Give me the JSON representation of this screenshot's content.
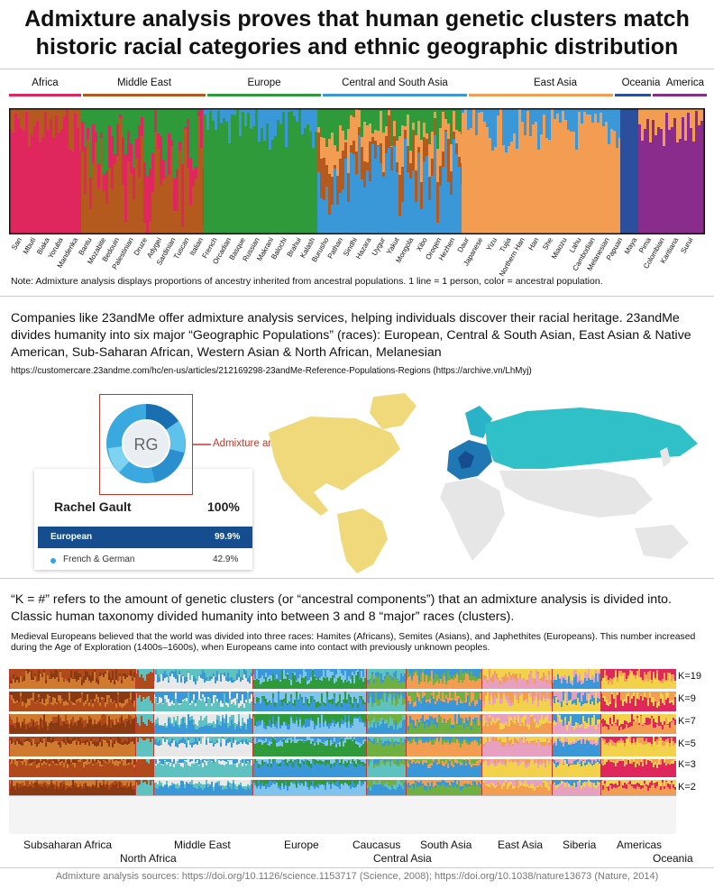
{
  "header": {
    "title_line1": "Admixture analysis proves that human genetic clusters match",
    "title_line2": "historic racial categories and ethnic geographic distribution"
  },
  "admixture_chart": {
    "regions": [
      {
        "label": "Africa",
        "color": "#e0275d"
      },
      {
        "label": "Middle East",
        "color": "#b55a1e"
      },
      {
        "label": "Europe",
        "color": "#2e9a3a"
      },
      {
        "label": "Central and South Asia",
        "color": "#3a98d8"
      },
      {
        "label": "East Asia",
        "color": "#f39d53"
      },
      {
        "label": "Oceania",
        "color": "#2b4f9c"
      },
      {
        "label": "America",
        "color": "#8a2c8c"
      }
    ],
    "populations": [
      "San",
      "Mbuti",
      "Biaka",
      "Yoruba",
      "Mandenka",
      "Bantu",
      "Mozabite",
      "Bedouin",
      "Palestinian",
      "Druze",
      "Adygei",
      "Sardinian",
      "Tuscan",
      "Italian",
      "French",
      "Orcadian",
      "Basque",
      "Russian",
      "Makrani",
      "Balochi",
      "Brahui",
      "Kalash",
      "Burusho",
      "Pathan",
      "Sindhi",
      "Hazara",
      "Uygur",
      "Yakut",
      "Mongola",
      "Xibo",
      "Oroqen",
      "Hezhen",
      "Daur",
      "Japanese",
      "Yizu",
      "Tujia",
      "Northern Han",
      "Han",
      "She",
      "Miaozu",
      "Lahu",
      "Cambodian",
      "Melanesian",
      "Papuan",
      "Maya",
      "Pima",
      "Colombian",
      "Karitiana",
      "Surui"
    ],
    "note": "Note: Admixture analysis displays proportions of ancestry inherited from ancestral populations. 1 line = 1 person, color = ancestral population."
  },
  "section2": {
    "paragraph": "Companies like 23andMe offer admixture analysis services, helping individuals discover their racial heritage. 23andMe divides humanity into six major “Geographic Populations” (races): European, Central & South Asian, East Asian & Native American, Sub-Saharan African, Western Asian & North African, Melanesian",
    "url": "https://customercare.23andme.com/hc/en-us/articles/212169298-23andMe-Reference-Populations-Regions (https://archive.vn/LhMyj)",
    "card": {
      "initials": "RG",
      "name": "Rachel Gault",
      "total": "100%",
      "row1_label": "European",
      "row1_value": "99.9%",
      "row2_label": "French & German",
      "row2_value": "42.9%",
      "callout": "Admixture analysis"
    }
  },
  "section3": {
    "paragraph": "“K = #” refers to the amount of genetic clusters (or “ancestral components”) that an admixture analysis is divided into. Classic human taxonomy divided humanity into between 3 and 8 “major” races (clusters).",
    "small": "Medieval Europeans believed that the world was divided into three races: Hamites (Africans), Semites (Asians), and Japhethites (Europeans). This number increased during the Age of Exploration (1400s–1600s), when Europeans came into contact with previously unknown peoples.",
    "k_labels": [
      "K=19",
      "K=9",
      "K=7",
      "K=5",
      "K=3",
      "K=2"
    ],
    "bottom_regions": [
      "Subsaharan Africa",
      "North Africa",
      "Middle East",
      "Europe",
      "Caucasus",
      "Central Asia",
      "South Asia",
      "East Asia",
      "Siberia",
      "Americas",
      "Oceania"
    ]
  },
  "footer": {
    "sources": "Admixture analysis sources: https://doi.org/10.1126/science.1153717 (Science, 2008); https://doi.org/10.1038/nature13673 (Nature, 2014)"
  }
}
